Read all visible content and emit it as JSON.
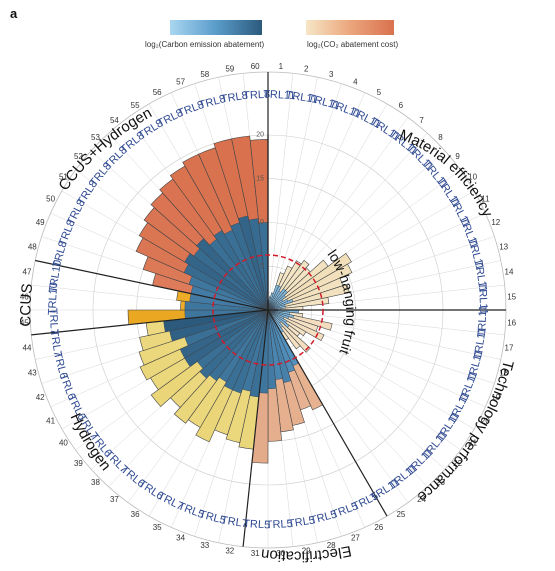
{
  "panel_letter": "a",
  "legend": {
    "emission_label": "log₂(Carbon emission abatement)",
    "cost_label": "log₂(CO₂ abatement cost)",
    "emission_colors": [
      "#a9d6f0",
      "#5a9ccb",
      "#2c5a7c"
    ],
    "cost_colors": [
      "#f6e6c6",
      "#eba67c",
      "#d9714e"
    ]
  },
  "annotation": "low-hanging fruit",
  "chart_data": {
    "type": "radial-bar",
    "radial_axis_ticks": [
      "5",
      "10",
      "15",
      "20"
    ],
    "radial_max": 20,
    "categories": [
      {
        "name": "Material efficiency",
        "sectors": [
          1,
          15
        ]
      },
      {
        "name": "Technology performance",
        "sectors": [
          16,
          25
        ]
      },
      {
        "name": "Electrification",
        "sectors": [
          26,
          31
        ]
      },
      {
        "name": "Hydrogen",
        "sectors": [
          32,
          44
        ]
      },
      {
        "name": "CCUS",
        "sectors": [
          45,
          47
        ]
      },
      {
        "name": "CCUS+Hydrogen",
        "sectors": [
          48,
          60
        ]
      }
    ],
    "sectors": [
      {
        "n": 1,
        "trl": "TRL11",
        "emission": 1.0,
        "cost": 0
      },
      {
        "n": 2,
        "trl": "TRL11",
        "emission": 1.5,
        "cost": 1.5
      },
      {
        "n": 3,
        "trl": "TRL11",
        "emission": 2.0,
        "cost": 2.0
      },
      {
        "n": 4,
        "trl": "TRL11",
        "emission": 3.0,
        "cost": 4.5
      },
      {
        "n": 5,
        "trl": "TRL11",
        "emission": 3.0,
        "cost": 5.5
      },
      {
        "n": 6,
        "trl": "TRL11",
        "emission": 2.5,
        "cost": 6.5
      },
      {
        "n": 7,
        "trl": "TRL11",
        "emission": 3.0,
        "cost": 7.0
      },
      {
        "n": 8,
        "trl": "TRL11",
        "emission": 3.0,
        "cost": 6.5
      },
      {
        "n": 9,
        "trl": "TRL11",
        "emission": 2.5,
        "cost": 8.5
      },
      {
        "n": 10,
        "trl": "TRL11",
        "emission": 2.0,
        "cost": 11.0
      },
      {
        "n": 11,
        "trl": "TRL11",
        "emission": 2.5,
        "cost": 10.5
      },
      {
        "n": 12,
        "trl": "TRL11",
        "emission": 3.0,
        "cost": 9.0
      },
      {
        "n": 13,
        "trl": "TRL11",
        "emission": 2.0,
        "cost": 9.5
      },
      {
        "n": 14,
        "trl": "TRL11",
        "emission": 2.0,
        "cost": 7.0
      },
      {
        "n": 15,
        "trl": "TRL11",
        "emission": 1.5,
        "cost": 4.0
      },
      {
        "n": 16,
        "trl": "TRL11",
        "emission": 3.5,
        "cost": 2.0
      },
      {
        "n": 17,
        "trl": "TRL11",
        "emission": 2.5,
        "cost": 4.0
      },
      {
        "n": 18,
        "trl": "TRL11",
        "emission": 3.0,
        "cost": 7.5
      },
      {
        "n": 19,
        "trl": "TRL11",
        "emission": 2.5,
        "cost": 6.0
      },
      {
        "n": 20,
        "trl": "TRL11",
        "emission": 2.0,
        "cost": 7.0
      },
      {
        "n": 21,
        "trl": "TRL11",
        "emission": 2.5,
        "cost": 5.0
      },
      {
        "n": 22,
        "trl": "TRL11",
        "emission": 3.0,
        "cost": 4.5
      },
      {
        "n": 23,
        "trl": "TRL11",
        "emission": 2.0,
        "cost": 6.5
      },
      {
        "n": 24,
        "trl": "TRL11",
        "emission": 2.5,
        "cost": 5.5
      },
      {
        "n": 25,
        "trl": "TRL11",
        "emission": 3.0,
        "cost": 4.0
      },
      {
        "n": 26,
        "trl": "TRL5",
        "emission": 7.0,
        "cost": 12.5
      },
      {
        "n": 27,
        "trl": "TRL5",
        "emission": 7.5,
        "cost": 12.0
      },
      {
        "n": 28,
        "trl": "TRL5",
        "emission": 8.5,
        "cost": 13.5
      },
      {
        "n": 29,
        "trl": "TRL5",
        "emission": 8.0,
        "cost": 14.0
      },
      {
        "n": 30,
        "trl": "TRL5",
        "emission": 9.0,
        "cost": 15.0
      },
      {
        "n": 31,
        "trl": "TRL5",
        "emission": 9.5,
        "cost": 17.5
      },
      {
        "n": 32,
        "trl": "TRL7",
        "emission": 10.0,
        "cost": 16.0
      },
      {
        "n": 33,
        "trl": "TRL5",
        "emission": 9.5,
        "cost": 15.5
      },
      {
        "n": 34,
        "trl": "TRL5",
        "emission": 10.0,
        "cost": 15.0
      },
      {
        "n": 35,
        "trl": "TRL7",
        "emission": 10.0,
        "cost": 16.5
      },
      {
        "n": 36,
        "trl": "TRL6",
        "emission": 9.5,
        "cost": 15.5
      },
      {
        "n": 37,
        "trl": "TRL6",
        "emission": 10.0,
        "cost": 16.0
      },
      {
        "n": 38,
        "trl": "TRL7",
        "emission": 10.5,
        "cost": 15.0
      },
      {
        "n": 39,
        "trl": "TRL6",
        "emission": 10.0,
        "cost": 16.5
      },
      {
        "n": 40,
        "trl": "TRL7",
        "emission": 11.0,
        "cost": 15.5
      },
      {
        "n": 41,
        "trl": "TRL6",
        "emission": 11.0,
        "cost": 16.0
      },
      {
        "n": 42,
        "trl": "TRL6",
        "emission": 10.0,
        "cost": 15.5
      },
      {
        "n": 43,
        "trl": "TRL6",
        "emission": 11.5,
        "cost": 15.0
      },
      {
        "n": 44,
        "trl": "TRL7",
        "emission": 12.0,
        "cost": 14.0
      },
      {
        "n": 45,
        "trl": "TRL7",
        "emission": 9.5,
        "cost": 16.0
      },
      {
        "n": 46,
        "trl": "TRL10",
        "emission": 9.5,
        "cost": 10.0
      },
      {
        "n": 47,
        "trl": "TRL10",
        "emission": 9.0,
        "cost": 10.5
      },
      {
        "n": 48,
        "trl": "TRL8",
        "emission": 9.0,
        "cost": 13.5
      },
      {
        "n": 49,
        "trl": "TRL8",
        "emission": 9.5,
        "cost": 15.0
      },
      {
        "n": 50,
        "trl": "TRL8",
        "emission": 10.5,
        "cost": 16.5
      },
      {
        "n": 51,
        "trl": "TRL8",
        "emission": 11.0,
        "cost": 17.0
      },
      {
        "n": 52,
        "trl": "TRL8",
        "emission": 10.5,
        "cost": 17.5
      },
      {
        "n": 53,
        "trl": "TRL8",
        "emission": 11.0,
        "cost": 18.0
      },
      {
        "n": 54,
        "trl": "TRL8",
        "emission": 10.0,
        "cost": 18.5
      },
      {
        "n": 55,
        "trl": "TRL8",
        "emission": 10.5,
        "cost": 19.0
      },
      {
        "n": 56,
        "trl": "TRL8",
        "emission": 10.0,
        "cost": 19.5
      },
      {
        "n": 57,
        "trl": "TRL8",
        "emission": 10.5,
        "cost": 19.5
      },
      {
        "n": 58,
        "trl": "TRL8",
        "emission": 11.0,
        "cost": 20.0
      },
      {
        "n": 59,
        "trl": "TRL8",
        "emission": 10.5,
        "cost": 20.0
      },
      {
        "n": 60,
        "trl": "TRL8",
        "emission": 10.0,
        "cost": 19.5
      }
    ]
  }
}
